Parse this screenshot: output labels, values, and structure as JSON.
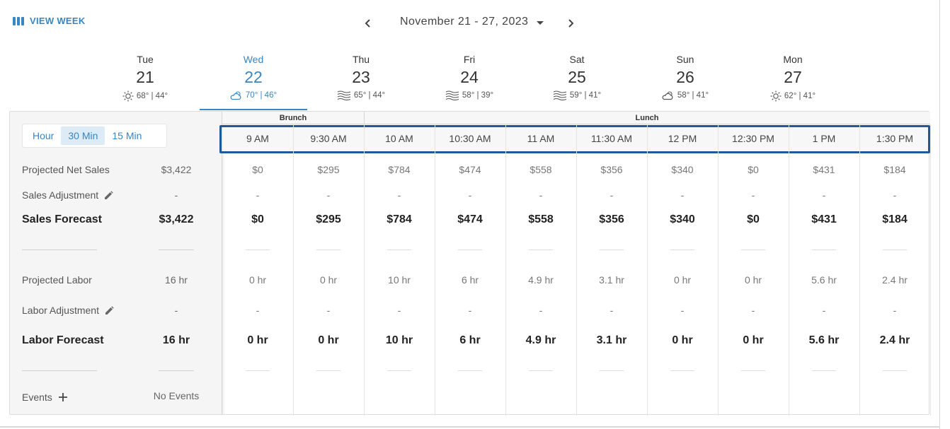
{
  "header": {
    "view_week_label": "VIEW WEEK",
    "date_range": "November 21 - 27, 2023"
  },
  "days": [
    {
      "dow": "Tue",
      "num": "21",
      "weather_icon": "sun-icon",
      "temps": "68° | 44°",
      "selected": false
    },
    {
      "dow": "Wed",
      "num": "22",
      "weather_icon": "cloud-sun-icon",
      "temps": "70° | 46°",
      "selected": true
    },
    {
      "dow": "Thu",
      "num": "23",
      "weather_icon": "wind-icon",
      "temps": "65° | 44°",
      "selected": false
    },
    {
      "dow": "Fri",
      "num": "24",
      "weather_icon": "wind-icon",
      "temps": "58° | 39°",
      "selected": false
    },
    {
      "dow": "Sat",
      "num": "25",
      "weather_icon": "wind-icon",
      "temps": "59° | 41°",
      "selected": false
    },
    {
      "dow": "Sun",
      "num": "26",
      "weather_icon": "cloud-sun-icon",
      "temps": "58° | 41°",
      "selected": false
    },
    {
      "dow": "Mon",
      "num": "27",
      "weather_icon": "sun-icon",
      "temps": "62° | 41°",
      "selected": false
    }
  ],
  "interval_toggle": {
    "options": [
      "Hour",
      "30 Min",
      "15 Min"
    ],
    "selected": "30 Min"
  },
  "rows": {
    "projected_net_sales": {
      "label": "Projected Net Sales",
      "total": "$3,422"
    },
    "sales_adjustment": {
      "label": "Sales Adjustment",
      "total": "-"
    },
    "sales_forecast": {
      "label": "Sales Forecast",
      "total": "$3,422"
    },
    "projected_labor": {
      "label": "Projected Labor",
      "total": "16 hr"
    },
    "labor_adjustment": {
      "label": "Labor Adjustment",
      "total": "-"
    },
    "labor_forecast": {
      "label": "Labor Forecast",
      "total": "16 hr"
    },
    "events": {
      "label": "Events",
      "total": "No Events"
    }
  },
  "groups": [
    {
      "label": "Brunch",
      "span": 2
    },
    {
      "label": "Lunch",
      "span": 8
    }
  ],
  "time_slots": [
    "9 AM",
    "9:30 AM",
    "10 AM",
    "10:30 AM",
    "11 AM",
    "11:30 AM",
    "12 PM",
    "12:30 PM",
    "1 PM",
    "1:30 PM"
  ],
  "grid": {
    "projected_net_sales": [
      "$0",
      "$295",
      "$784",
      "$474",
      "$558",
      "$356",
      "$340",
      "$0",
      "$431",
      "$184"
    ],
    "sales_adjustment": [
      "-",
      "-",
      "-",
      "-",
      "-",
      "-",
      "-",
      "-",
      "-",
      "-"
    ],
    "sales_forecast": [
      "$0",
      "$295",
      "$784",
      "$474",
      "$558",
      "$356",
      "$340",
      "$0",
      "$431",
      "$184"
    ],
    "projected_labor": [
      "0 hr",
      "0 hr",
      "10 hr",
      "6 hr",
      "4.9 hr",
      "3.1 hr",
      "0 hr",
      "0 hr",
      "5.6 hr",
      "2.4 hr"
    ],
    "labor_adjustment": [
      "-",
      "-",
      "-",
      "-",
      "-",
      "-",
      "-",
      "-",
      "-",
      "-"
    ],
    "labor_forecast": [
      "0 hr",
      "0 hr",
      "10 hr",
      "6 hr",
      "4.9 hr",
      "3.1 hr",
      "0 hr",
      "0 hr",
      "5.6 hr",
      "2.4 hr"
    ]
  },
  "colors": {
    "accent": "#3a86c0",
    "highlight_border": "#1f5a94"
  }
}
